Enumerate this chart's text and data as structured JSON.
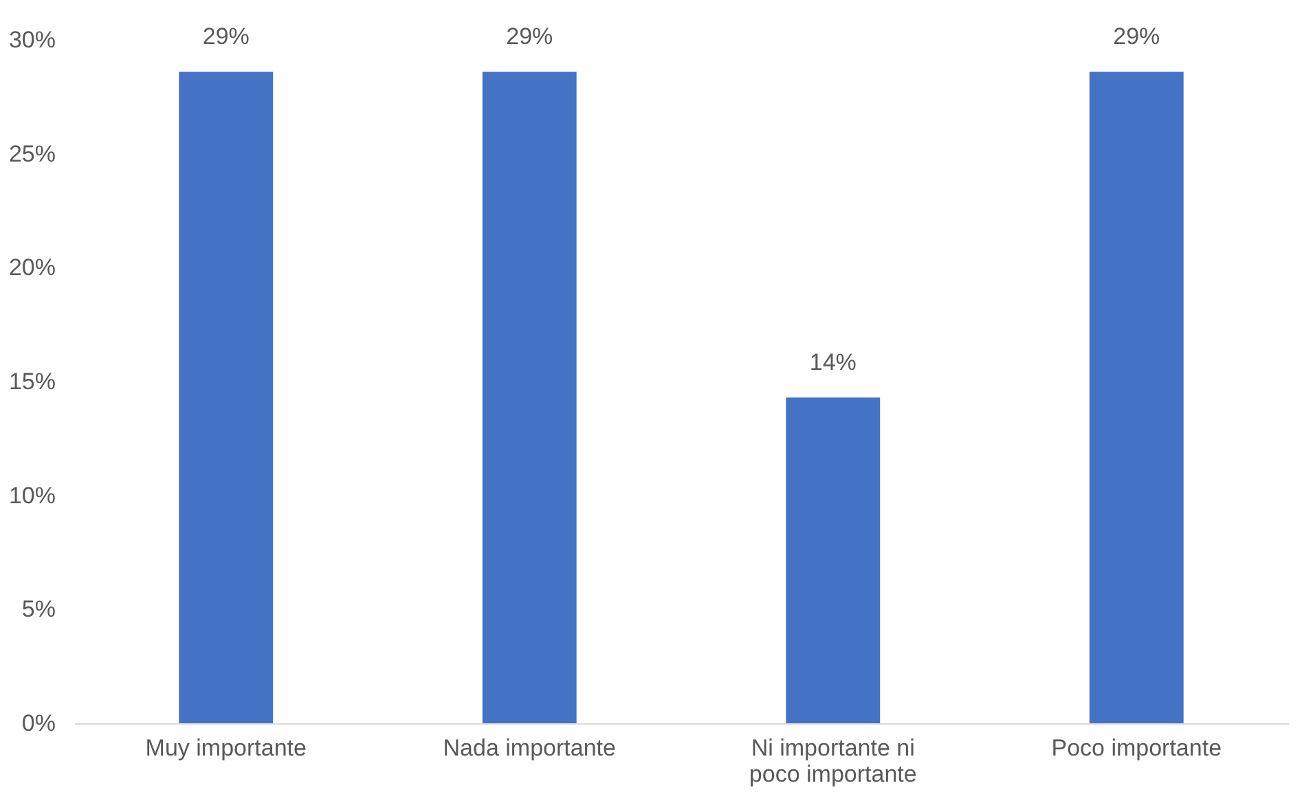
{
  "chart_data": {
    "type": "bar",
    "categories": [
      "Muy importante",
      "Nada importante",
      "Ni importante ni poco importante",
      "Poco importante"
    ],
    "values": [
      28.6,
      28.6,
      14.3,
      28.6
    ],
    "value_labels": [
      "29%",
      "29%",
      "14%",
      "29%"
    ],
    "color": "#4472c4",
    "ylim": [
      0,
      30
    ],
    "yticks": [
      {
        "value": 0,
        "label": "0%"
      },
      {
        "value": 5,
        "label": "5%"
      },
      {
        "value": 10,
        "label": "10%"
      },
      {
        "value": 15,
        "label": "15%"
      },
      {
        "value": 20,
        "label": "20%"
      },
      {
        "value": 25,
        "label": "25%"
      },
      {
        "value": 30,
        "label": "30%"
      }
    ],
    "grid": false
  }
}
